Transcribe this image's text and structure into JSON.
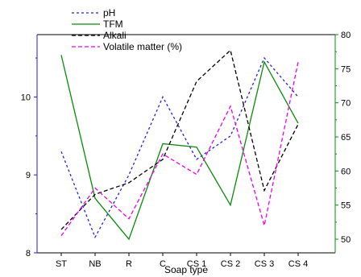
{
  "chart_data": {
    "type": "line",
    "xlabel": "Soap type",
    "categories": [
      "ST",
      "NB",
      "R",
      "C",
      "CS 1",
      "CS 2",
      "CS 3",
      "CS 4"
    ],
    "left_axis": {
      "ylim": [
        8,
        10.8
      ],
      "ticks": [
        8,
        9,
        10
      ],
      "color": "#1f1fcc"
    },
    "right_axis": {
      "ylim": [
        48,
        80
      ],
      "ticks": [
        50,
        55,
        60,
        65,
        70,
        75,
        80
      ],
      "color": "#0a8a0a"
    },
    "legend_position": "top-left",
    "series": [
      {
        "name": "pH",
        "axis": "left",
        "color": "#2222dd",
        "style": "dotted",
        "values": [
          9.3,
          8.2,
          9.0,
          10.0,
          9.2,
          9.5,
          10.5,
          10.0
        ]
      },
      {
        "name": "TFM",
        "axis": "right",
        "color": "#0a8a0a",
        "style": "solid",
        "values": [
          77,
          56,
          50,
          64,
          63.5,
          55,
          76,
          67
        ]
      },
      {
        "name": "Alkali",
        "axis": "left",
        "color": "#000000",
        "style": "dashed",
        "values": [
          8.3,
          8.75,
          8.9,
          9.2,
          10.2,
          10.6,
          8.8,
          9.65
        ]
      },
      {
        "name": "Volatile matter (%)",
        "axis": "right",
        "color": "#ee00ee",
        "style": "dashed",
        "values": [
          50.5,
          57.5,
          53,
          62.5,
          59.5,
          69.5,
          52,
          76
        ]
      }
    ]
  }
}
